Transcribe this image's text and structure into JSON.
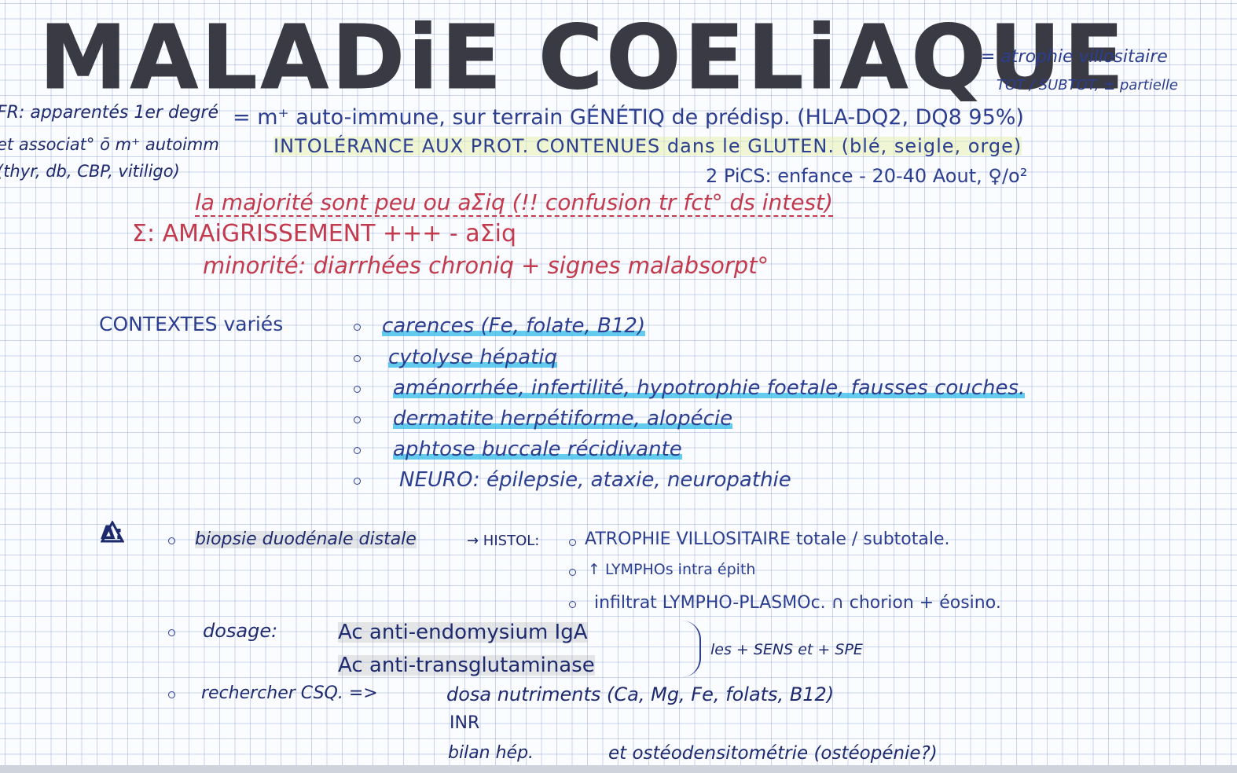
{
  "title": "MALADiE COELiAQUE",
  "definition_note": [
    "= atrophie villositaire",
    "TOT / SUBTOT, ± partielle"
  ],
  "risk_factors": [
    "FR: apparentés 1er degré",
    "et associat° ō m⁺ autoimm",
    "(thyr, db, CBP, vitiligo)"
  ],
  "intro": {
    "line1": "= m⁺ auto-immune, sur terrain GÉNÉTIQ de prédisp. (HLA-DQ2, DQ8 95%)",
    "line2": "INTOLÉRANCE AUX PROT. CONTENUES dans le GLUTEN. (blé, seigle, orge)",
    "peaks": "2 PiCS: enfance - 20-40 Aout, ♀/o²"
  },
  "symptoms": {
    "majority": "la majorité sont peu ou aΣiq (!! confusion tr fct° ds intest)",
    "sigma": "Σ: AMAiGRISSEMENT +++  - aΣiq",
    "minority": "minorité: diarrhées chroniq + signes malabsorpt°"
  },
  "contexts": {
    "label": "CONTEXTES variés",
    "items": [
      "carences (Fe, folate, B12)",
      "cytolyse hépatiq",
      "aménorrhée, infertilité, hypotrophie foetale, fausses couches.",
      "dermatite herpétiforme, alopécie",
      "aphtose buccale récidivante",
      "NEURO: épilepsie, ataxie, neuropathie"
    ]
  },
  "diagnosis": {
    "warning_symbol": "Δ:",
    "biopsy": "biopsie duodénale distale",
    "histol_arrow": "→ HISTOL:",
    "histol_items": [
      "ATROPHIE VILLOSITAIRE totale / subtotale.",
      "↑ LYMPHOs intra épith",
      "infiltrat LYMPHO-PLASMOc. ∩ chorion + éosino."
    ],
    "dosage_label": "dosage:",
    "dosage_items": [
      "Ac anti-endomysium IgA",
      "Ac anti-transglutaminase"
    ],
    "dosage_note": "les + SENS et + SPE",
    "search_label": "rechercher CSQ. =>",
    "search_items": [
      "dosa nutriments (Ca, Mg, Fe, folats, B12)",
      "INR",
      "bilan hép.",
      "et ostéodensitométrie (ostéopénie?)"
    ]
  }
}
